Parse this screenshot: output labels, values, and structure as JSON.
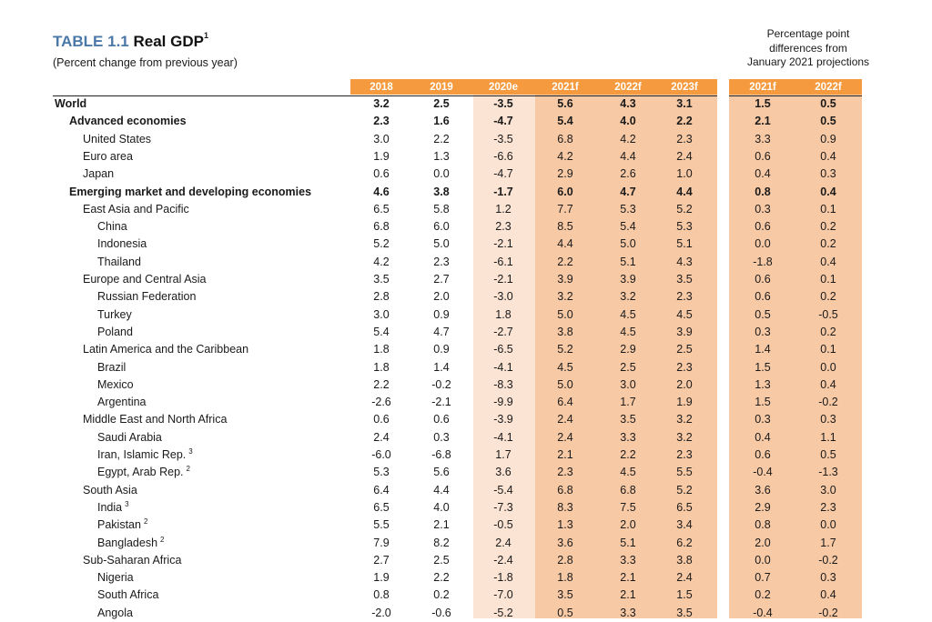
{
  "table": {
    "label": "TABLE 1.1",
    "name": "Real GDP",
    "name_footnote": "1",
    "subtitle": "(Percent change from previous year)",
    "diff_note": [
      "Percentage point",
      "differences from",
      "January 2021 projections"
    ],
    "columns": [
      "2018",
      "2019",
      "2020e",
      "2021f",
      "2022f",
      "2023f"
    ],
    "diff_columns": [
      "2021f",
      "2022f"
    ],
    "rows": [
      {
        "label": "World",
        "footnote": "",
        "level": 0,
        "bold": true,
        "values": [
          "3.2",
          "2.5",
          "-3.5",
          "5.6",
          "4.3",
          "3.1"
        ],
        "diff": [
          "1.5",
          "0.5"
        ]
      },
      {
        "label": "Advanced economies",
        "footnote": "",
        "level": 1,
        "bold": true,
        "values": [
          "2.3",
          "1.6",
          "-4.7",
          "5.4",
          "4.0",
          "2.2"
        ],
        "diff": [
          "2.1",
          "0.5"
        ]
      },
      {
        "label": "United States",
        "footnote": "",
        "level": 2,
        "bold": false,
        "values": [
          "3.0",
          "2.2",
          "-3.5",
          "6.8",
          "4.2",
          "2.3"
        ],
        "diff": [
          "3.3",
          "0.9"
        ]
      },
      {
        "label": "Euro area",
        "footnote": "",
        "level": 2,
        "bold": false,
        "values": [
          "1.9",
          "1.3",
          "-6.6",
          "4.2",
          "4.4",
          "2.4"
        ],
        "diff": [
          "0.6",
          "0.4"
        ]
      },
      {
        "label": "Japan",
        "footnote": "",
        "level": 2,
        "bold": false,
        "values": [
          "0.6",
          "0.0",
          "-4.7",
          "2.9",
          "2.6",
          "1.0"
        ],
        "diff": [
          "0.4",
          "0.3"
        ]
      },
      {
        "label": "Emerging market and developing economies",
        "footnote": "",
        "level": 1,
        "bold": true,
        "values": [
          "4.6",
          "3.8",
          "-1.7",
          "6.0",
          "4.7",
          "4.4"
        ],
        "diff": [
          "0.8",
          "0.4"
        ]
      },
      {
        "label": "East Asia and Pacific",
        "footnote": "",
        "level": 2,
        "bold": false,
        "values": [
          "6.5",
          "5.8",
          "1.2",
          "7.7",
          "5.3",
          "5.2"
        ],
        "diff": [
          "0.3",
          "0.1"
        ]
      },
      {
        "label": "China",
        "footnote": "",
        "level": 3,
        "bold": false,
        "values": [
          "6.8",
          "6.0",
          "2.3",
          "8.5",
          "5.4",
          "5.3"
        ],
        "diff": [
          "0.6",
          "0.2"
        ]
      },
      {
        "label": "Indonesia",
        "footnote": "",
        "level": 3,
        "bold": false,
        "values": [
          "5.2",
          "5.0",
          "-2.1",
          "4.4",
          "5.0",
          "5.1"
        ],
        "diff": [
          "0.0",
          "0.2"
        ]
      },
      {
        "label": "Thailand",
        "footnote": "",
        "level": 3,
        "bold": false,
        "values": [
          "4.2",
          "2.3",
          "-6.1",
          "2.2",
          "5.1",
          "4.3"
        ],
        "diff": [
          "-1.8",
          "0.4"
        ]
      },
      {
        "label": "Europe and Central Asia",
        "footnote": "",
        "level": 2,
        "bold": false,
        "values": [
          "3.5",
          "2.7",
          "-2.1",
          "3.9",
          "3.9",
          "3.5"
        ],
        "diff": [
          "0.6",
          "0.1"
        ]
      },
      {
        "label": "Russian Federation",
        "footnote": "",
        "level": 3,
        "bold": false,
        "values": [
          "2.8",
          "2.0",
          "-3.0",
          "3.2",
          "3.2",
          "2.3"
        ],
        "diff": [
          "0.6",
          "0.2"
        ]
      },
      {
        "label": "Turkey",
        "footnote": "",
        "level": 3,
        "bold": false,
        "values": [
          "3.0",
          "0.9",
          "1.8",
          "5.0",
          "4.5",
          "4.5"
        ],
        "diff": [
          "0.5",
          "-0.5"
        ]
      },
      {
        "label": "Poland",
        "footnote": "",
        "level": 3,
        "bold": false,
        "values": [
          "5.4",
          "4.7",
          "-2.7",
          "3.8",
          "4.5",
          "3.9"
        ],
        "diff": [
          "0.3",
          "0.2"
        ]
      },
      {
        "label": "Latin America and the Caribbean",
        "footnote": "",
        "level": 2,
        "bold": false,
        "values": [
          "1.8",
          "0.9",
          "-6.5",
          "5.2",
          "2.9",
          "2.5"
        ],
        "diff": [
          "1.4",
          "0.1"
        ]
      },
      {
        "label": "Brazil",
        "footnote": "",
        "level": 3,
        "bold": false,
        "values": [
          "1.8",
          "1.4",
          "-4.1",
          "4.5",
          "2.5",
          "2.3"
        ],
        "diff": [
          "1.5",
          "0.0"
        ]
      },
      {
        "label": "Mexico",
        "footnote": "",
        "level": 3,
        "bold": false,
        "values": [
          "2.2",
          "-0.2",
          "-8.3",
          "5.0",
          "3.0",
          "2.0"
        ],
        "diff": [
          "1.3",
          "0.4"
        ]
      },
      {
        "label": "Argentina",
        "footnote": "",
        "level": 3,
        "bold": false,
        "values": [
          "-2.6",
          "-2.1",
          "-9.9",
          "6.4",
          "1.7",
          "1.9"
        ],
        "diff": [
          "1.5",
          "-0.2"
        ]
      },
      {
        "label": "Middle East and North Africa",
        "footnote": "",
        "level": 2,
        "bold": false,
        "values": [
          "0.6",
          "0.6",
          "-3.9",
          "2.4",
          "3.5",
          "3.2"
        ],
        "diff": [
          "0.3",
          "0.3"
        ]
      },
      {
        "label": "Saudi Arabia",
        "footnote": "",
        "level": 3,
        "bold": false,
        "values": [
          "2.4",
          "0.3",
          "-4.1",
          "2.4",
          "3.3",
          "3.2"
        ],
        "diff": [
          "0.4",
          "1.1"
        ]
      },
      {
        "label": "Iran, Islamic Rep.",
        "footnote": "3",
        "level": 3,
        "bold": false,
        "values": [
          "-6.0",
          "-6.8",
          "1.7",
          "2.1",
          "2.2",
          "2.3"
        ],
        "diff": [
          "0.6",
          "0.5"
        ]
      },
      {
        "label": "Egypt, Arab Rep.",
        "footnote": "2",
        "level": 3,
        "bold": false,
        "values": [
          "5.3",
          "5.6",
          "3.6",
          "2.3",
          "4.5",
          "5.5"
        ],
        "diff": [
          "-0.4",
          "-1.3"
        ]
      },
      {
        "label": "South Asia",
        "footnote": "",
        "level": 2,
        "bold": false,
        "values": [
          "6.4",
          "4.4",
          "-5.4",
          "6.8",
          "6.8",
          "5.2"
        ],
        "diff": [
          "3.6",
          "3.0"
        ]
      },
      {
        "label": "India",
        "footnote": "3",
        "level": 3,
        "bold": false,
        "values": [
          "6.5",
          "4.0",
          "-7.3",
          "8.3",
          "7.5",
          "6.5"
        ],
        "diff": [
          "2.9",
          "2.3"
        ]
      },
      {
        "label": "Pakistan",
        "footnote": "2",
        "level": 3,
        "bold": false,
        "values": [
          "5.5",
          "2.1",
          "-0.5",
          "1.3",
          "2.0",
          "3.4"
        ],
        "diff": [
          "0.8",
          "0.0"
        ]
      },
      {
        "label": "Bangladesh",
        "footnote": "2",
        "level": 3,
        "bold": false,
        "values": [
          "7.9",
          "8.2",
          "2.4",
          "3.6",
          "5.1",
          "6.2"
        ],
        "diff": [
          "2.0",
          "1.7"
        ]
      },
      {
        "label": "Sub-Saharan Africa",
        "footnote": "",
        "level": 2,
        "bold": false,
        "values": [
          "2.7",
          "2.5",
          "-2.4",
          "2.8",
          "3.3",
          "3.8"
        ],
        "diff": [
          "0.0",
          "-0.2"
        ]
      },
      {
        "label": "Nigeria",
        "footnote": "",
        "level": 3,
        "bold": false,
        "values": [
          "1.9",
          "2.2",
          "-1.8",
          "1.8",
          "2.1",
          "2.4"
        ],
        "diff": [
          "0.7",
          "0.3"
        ]
      },
      {
        "label": "South Africa",
        "footnote": "",
        "level": 3,
        "bold": false,
        "values": [
          "0.8",
          "0.2",
          "-7.0",
          "3.5",
          "2.1",
          "1.5"
        ],
        "diff": [
          "0.2",
          "0.4"
        ]
      },
      {
        "label": "Angola",
        "footnote": "",
        "level": 3,
        "bold": false,
        "values": [
          "-2.0",
          "-0.6",
          "-5.2",
          "0.5",
          "3.3",
          "3.5"
        ],
        "diff": [
          "-0.4",
          "-0.2"
        ]
      }
    ]
  }
}
